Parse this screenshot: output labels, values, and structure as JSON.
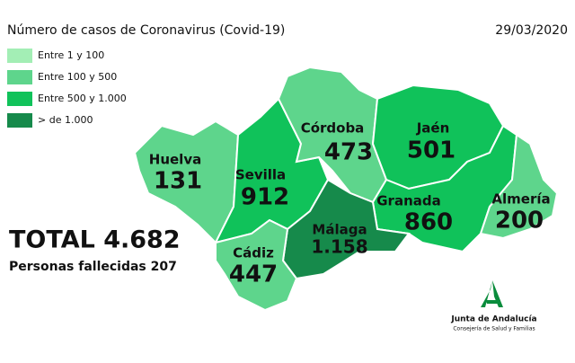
{
  "header": {
    "title": "Número de casos de Coronavirus (Covid-19)",
    "date": "29/03/2020"
  },
  "legend": [
    {
      "label": "Entre 1 y 100",
      "color": "#a3eeb5"
    },
    {
      "label": "Entre 100 y 500",
      "color": "#5ed58c"
    },
    {
      "label": "Entre 500 y 1.000",
      "color": "#10c25a"
    },
    {
      "label": "> de 1.000",
      "color": "#168a4b"
    }
  ],
  "provinces": [
    {
      "name": "Huelva",
      "value": "131",
      "color": "#5ed58c"
    },
    {
      "name": "Sevilla",
      "value": "912",
      "color": "#10c25a"
    },
    {
      "name": "Córdoba",
      "value": "473",
      "color": "#5ed58c"
    },
    {
      "name": "Jaén",
      "value": "501",
      "color": "#10c25a"
    },
    {
      "name": "Granada",
      "value": "860",
      "color": "#10c25a"
    },
    {
      "name": "Almería",
      "value": "200",
      "color": "#5ed58c"
    },
    {
      "name": "Málaga",
      "value": "1.158",
      "color": "#168a4b"
    },
    {
      "name": "Cádiz",
      "value": "447",
      "color": "#5ed58c"
    }
  ],
  "summary": {
    "total": "TOTAL 4.682",
    "deaths": "Personas fallecidas 207"
  },
  "logo": {
    "name": "Junta de Andalucía",
    "subtitle": "Consejería de Salud y Familias"
  }
}
